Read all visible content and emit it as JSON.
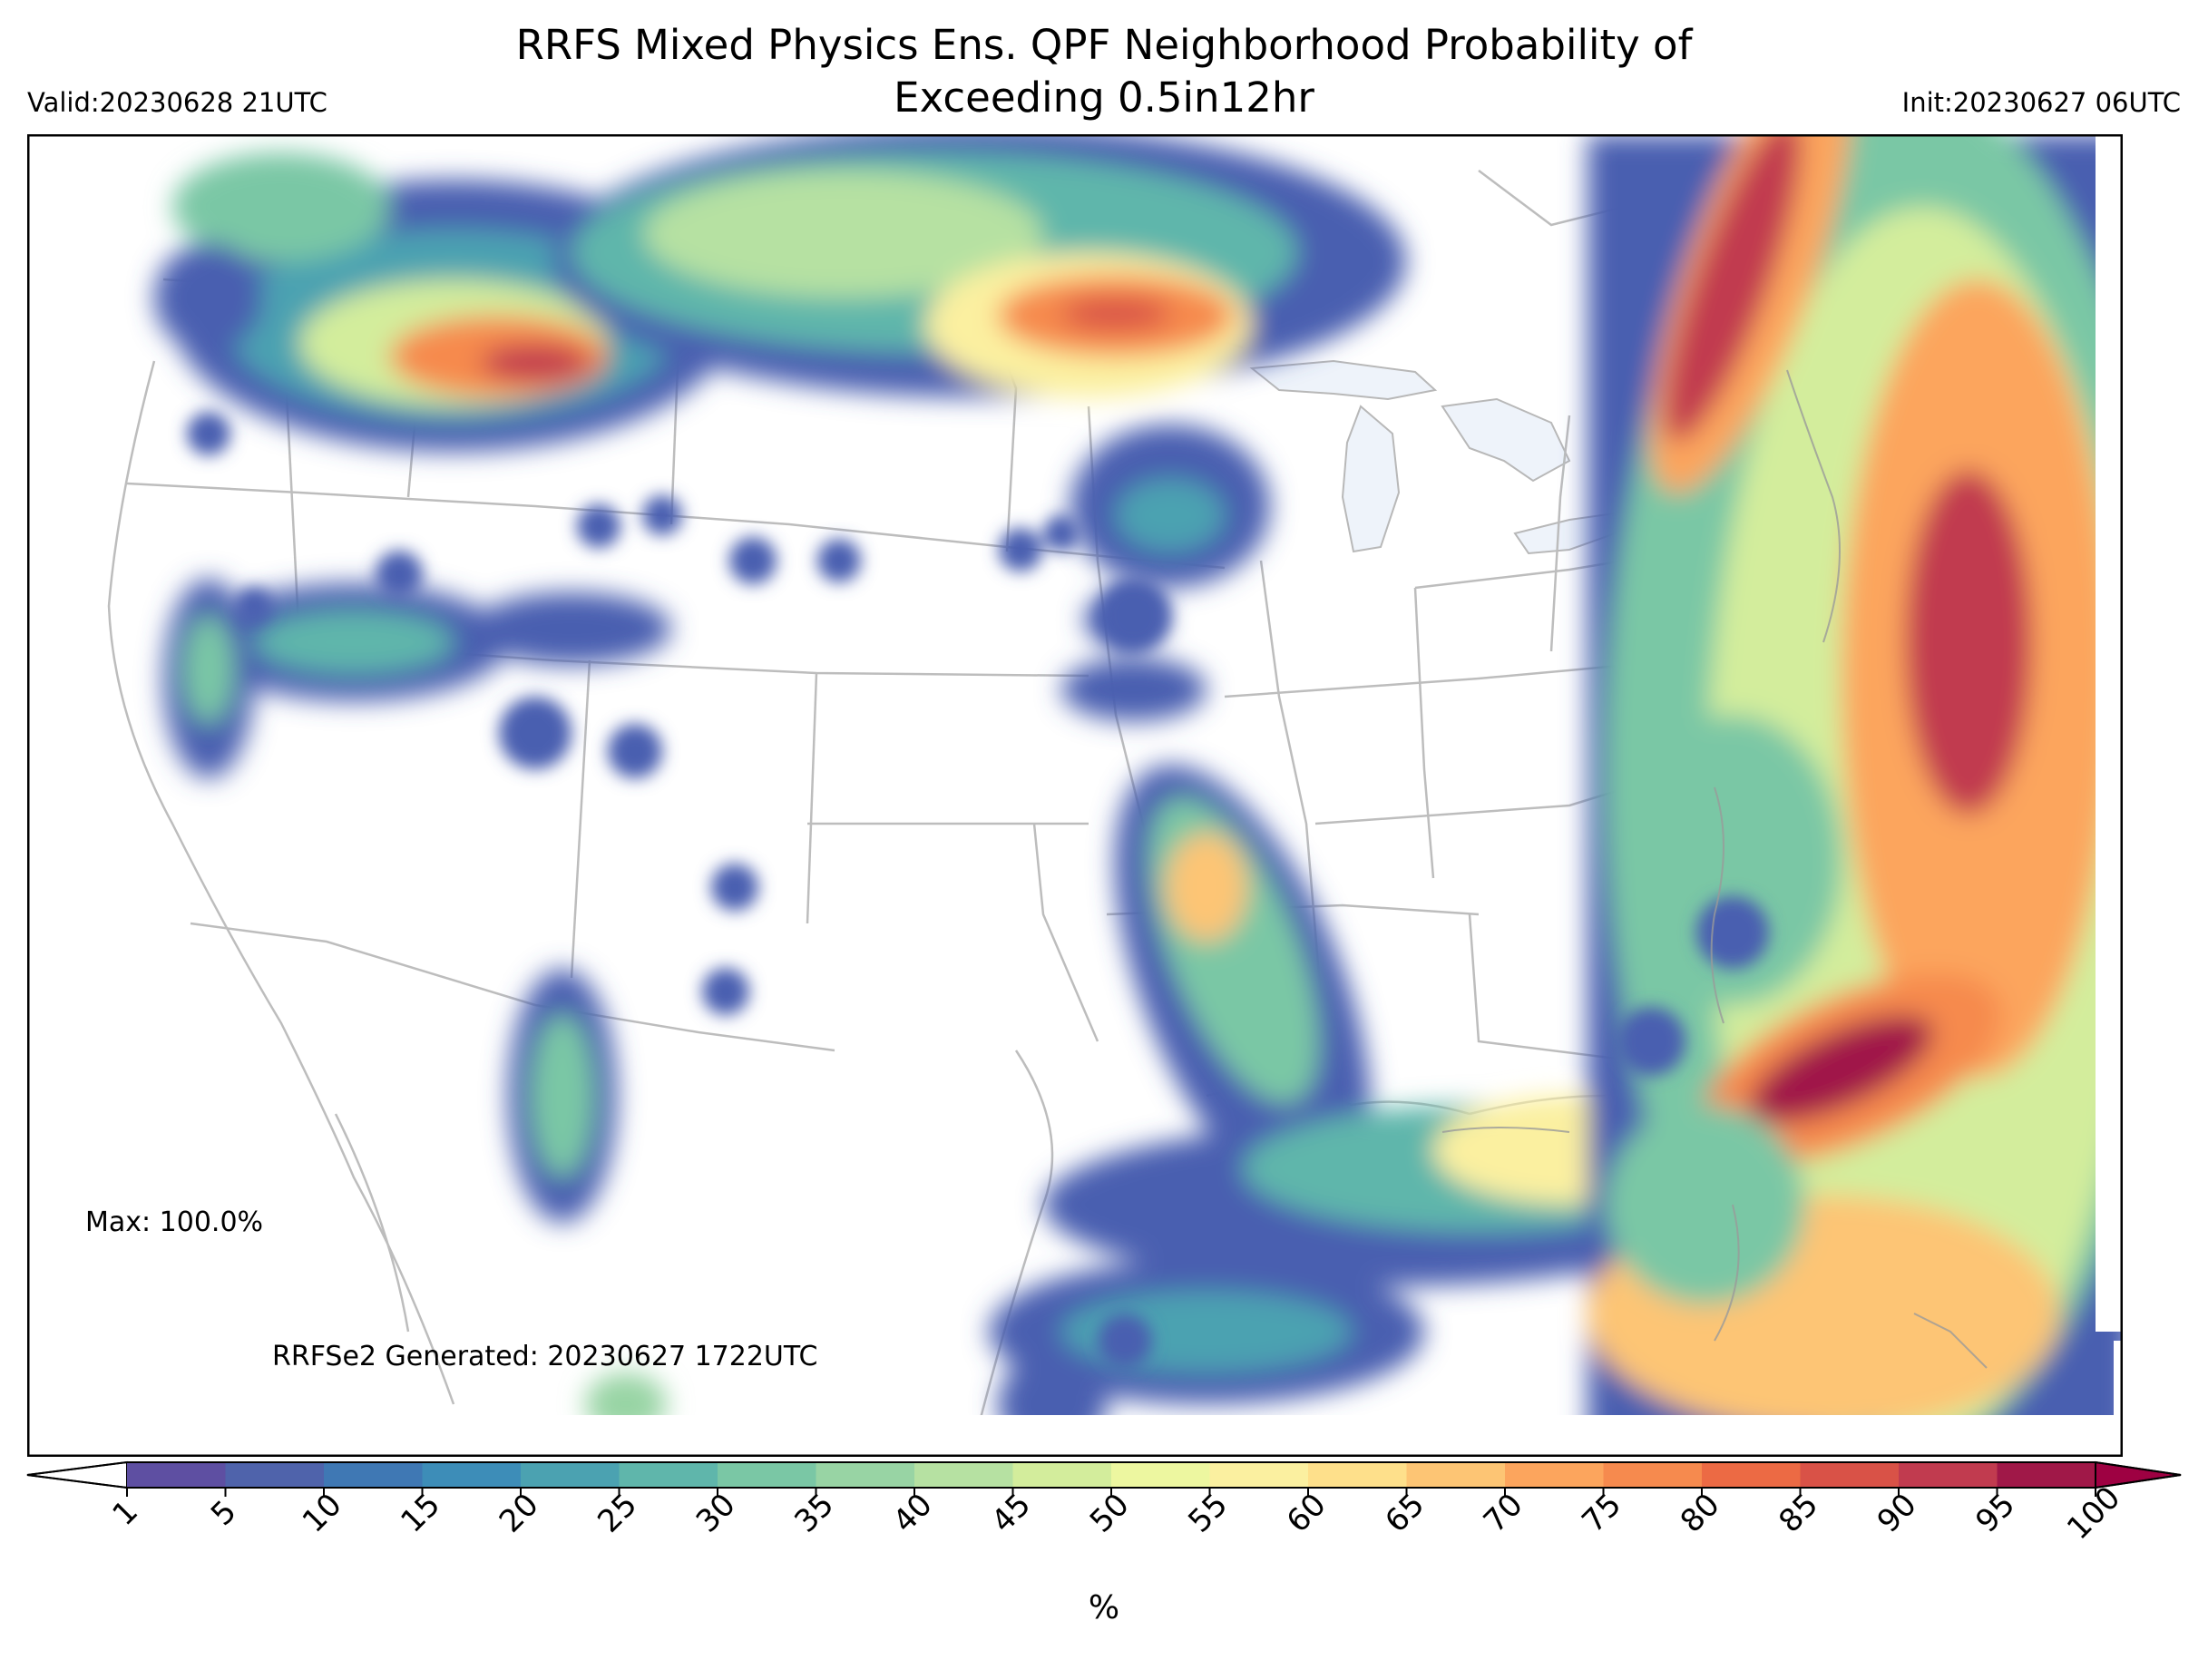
{
  "title": {
    "line1": "RRFS Mixed Physics Ens. QPF Neighborhood Probability of",
    "line2": "Exceeding 0.5in12hr"
  },
  "valid_label": "Valid:20230628 21UTC",
  "init_label": "Init:20230627 06UTC",
  "max_label": "Max: 100.0%",
  "generated_label": "RRFSe2 Generated: 20230627 1722UTC",
  "colorbar": {
    "unit_label": "%",
    "ticks": [
      "1",
      "5",
      "10",
      "15",
      "20",
      "25",
      "30",
      "35",
      "40",
      "45",
      "50",
      "55",
      "60",
      "65",
      "70",
      "75",
      "80",
      "85",
      "90",
      "95",
      "100"
    ],
    "colors": [
      "#5e4fa2",
      "#4f63ab",
      "#3f78b4",
      "#3d8db8",
      "#4ba2b1",
      "#5fb6ab",
      "#7ac7a5",
      "#98d4a4",
      "#b6e1a2",
      "#d3ed9c",
      "#edf7a0",
      "#fbf0a0",
      "#fee08b",
      "#fdc574",
      "#fca55d",
      "#f68a4e",
      "#ec6a44",
      "#d95247",
      "#c13b4f",
      "#a01848"
    ],
    "under_color": "#ffffff",
    "over_color": "#9e0142"
  }
}
